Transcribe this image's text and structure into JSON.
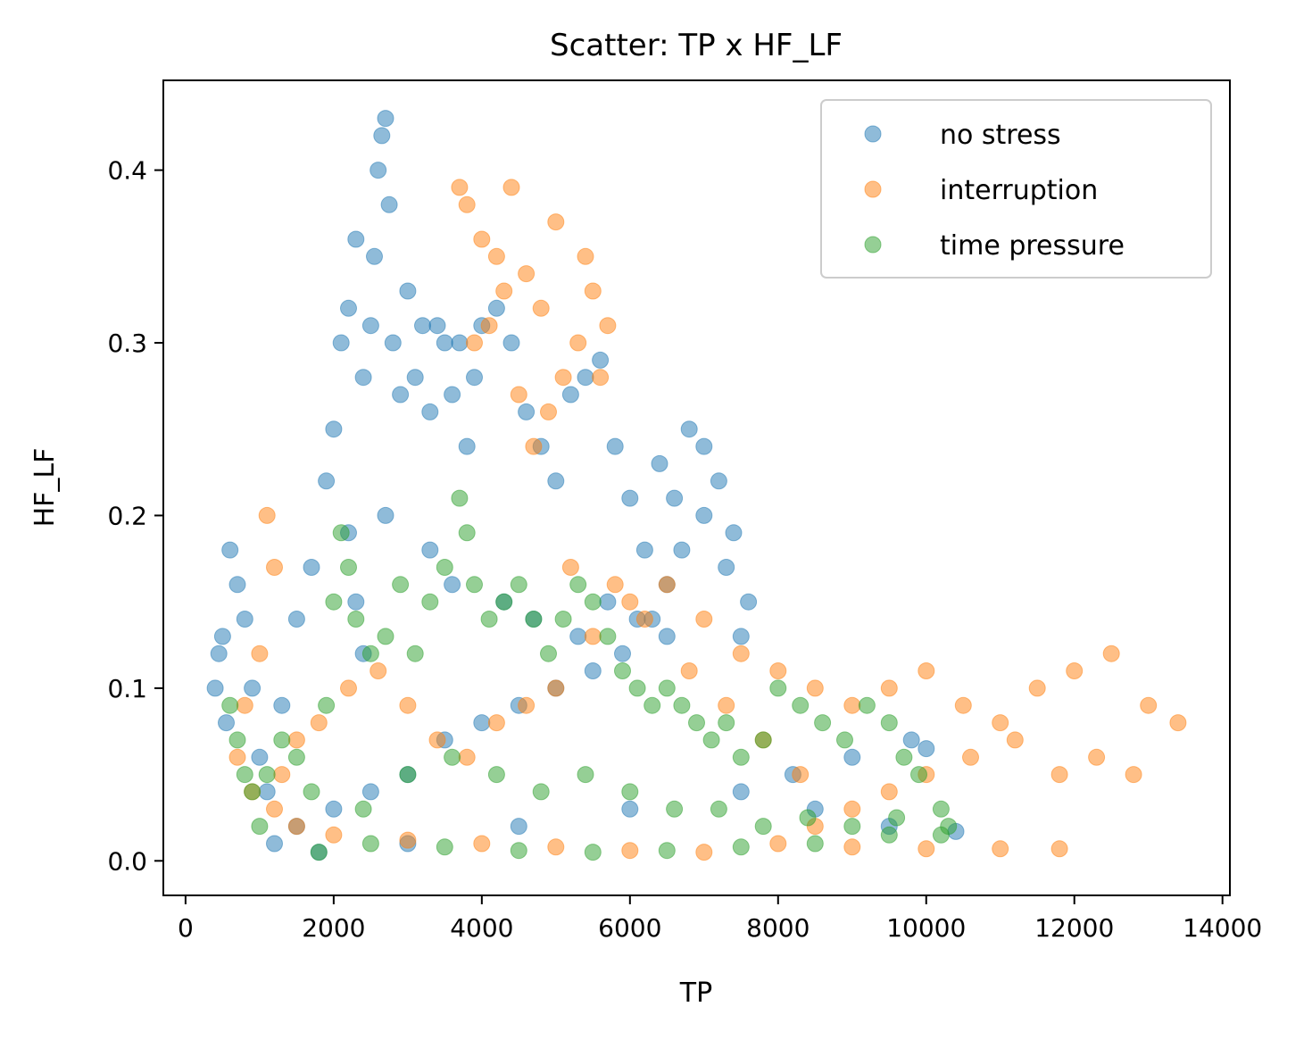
{
  "chart_data": {
    "type": "scatter",
    "title": "Scatter: TP x HF_LF",
    "xlabel": "TP",
    "ylabel": "HF_LF",
    "xlim": [
      -300,
      14100
    ],
    "ylim": [
      -0.02,
      0.452
    ],
    "xticks": [
      0,
      2000,
      4000,
      6000,
      8000,
      10000,
      12000,
      14000
    ],
    "xtick_labels": [
      "0",
      "2000",
      "4000",
      "6000",
      "8000",
      "10000",
      "12000",
      "14000"
    ],
    "yticks": [
      0.0,
      0.1,
      0.2,
      0.3,
      0.4
    ],
    "ytick_labels": [
      "0.0",
      "0.1",
      "0.2",
      "0.3",
      "0.4"
    ],
    "grid": false,
    "legend_position": "upper right",
    "marker_alpha": 0.5,
    "series": [
      {
        "name": "no stress",
        "color": "#1f77b4",
        "points": [
          [
            400,
            0.1
          ],
          [
            500,
            0.13
          ],
          [
            600,
            0.18
          ],
          [
            700,
            0.16
          ],
          [
            550,
            0.08
          ],
          [
            450,
            0.12
          ],
          [
            800,
            0.14
          ],
          [
            900,
            0.1
          ],
          [
            1000,
            0.06
          ],
          [
            1100,
            0.04
          ],
          [
            1300,
            0.09
          ],
          [
            1500,
            0.14
          ],
          [
            1700,
            0.17
          ],
          [
            1900,
            0.22
          ],
          [
            2000,
            0.25
          ],
          [
            2100,
            0.3
          ],
          [
            2200,
            0.32
          ],
          [
            2300,
            0.36
          ],
          [
            2400,
            0.28
          ],
          [
            2500,
            0.31
          ],
          [
            2550,
            0.35
          ],
          [
            2600,
            0.4
          ],
          [
            2650,
            0.42
          ],
          [
            2700,
            0.43
          ],
          [
            2750,
            0.38
          ],
          [
            2800,
            0.3
          ],
          [
            2900,
            0.27
          ],
          [
            3000,
            0.33
          ],
          [
            3100,
            0.28
          ],
          [
            3200,
            0.31
          ],
          [
            3300,
            0.26
          ],
          [
            3400,
            0.31
          ],
          [
            3500,
            0.3
          ],
          [
            3600,
            0.27
          ],
          [
            3700,
            0.3
          ],
          [
            3800,
            0.24
          ],
          [
            3900,
            0.28
          ],
          [
            4000,
            0.31
          ],
          [
            4200,
            0.32
          ],
          [
            4400,
            0.3
          ],
          [
            4600,
            0.26
          ],
          [
            4800,
            0.24
          ],
          [
            5000,
            0.22
          ],
          [
            5200,
            0.27
          ],
          [
            5400,
            0.28
          ],
          [
            5600,
            0.29
          ],
          [
            5800,
            0.24
          ],
          [
            6000,
            0.21
          ],
          [
            6200,
            0.18
          ],
          [
            6400,
            0.23
          ],
          [
            6600,
            0.21
          ],
          [
            6800,
            0.25
          ],
          [
            7000,
            0.24
          ],
          [
            7200,
            0.22
          ],
          [
            7400,
            0.19
          ],
          [
            7600,
            0.15
          ],
          [
            7500,
            0.13
          ],
          [
            7300,
            0.17
          ],
          [
            7000,
            0.2
          ],
          [
            6700,
            0.18
          ],
          [
            6500,
            0.16
          ],
          [
            6300,
            0.14
          ],
          [
            5900,
            0.12
          ],
          [
            5500,
            0.11
          ],
          [
            5000,
            0.1
          ],
          [
            4500,
            0.09
          ],
          [
            4000,
            0.08
          ],
          [
            3500,
            0.07
          ],
          [
            3000,
            0.05
          ],
          [
            2500,
            0.04
          ],
          [
            2000,
            0.03
          ],
          [
            1500,
            0.02
          ],
          [
            1200,
            0.01
          ],
          [
            1800,
            0.005
          ],
          [
            3000,
            0.01
          ],
          [
            4500,
            0.02
          ],
          [
            6000,
            0.03
          ],
          [
            7500,
            0.04
          ],
          [
            8500,
            0.03
          ],
          [
            9500,
            0.02
          ],
          [
            10400,
            0.017
          ],
          [
            9800,
            0.07
          ],
          [
            10000,
            0.065
          ],
          [
            9000,
            0.06
          ],
          [
            8200,
            0.05
          ],
          [
            2200,
            0.19
          ],
          [
            2300,
            0.15
          ],
          [
            2400,
            0.12
          ],
          [
            2700,
            0.2
          ],
          [
            3300,
            0.18
          ],
          [
            3600,
            0.16
          ],
          [
            4300,
            0.15
          ],
          [
            4700,
            0.14
          ],
          [
            5300,
            0.13
          ],
          [
            5700,
            0.15
          ],
          [
            6100,
            0.14
          ],
          [
            6500,
            0.13
          ]
        ]
      },
      {
        "name": "interruption",
        "color": "#ff7f0e",
        "points": [
          [
            3700,
            0.39
          ],
          [
            3800,
            0.38
          ],
          [
            4000,
            0.36
          ],
          [
            4200,
            0.35
          ],
          [
            4400,
            0.39
          ],
          [
            4300,
            0.33
          ],
          [
            4100,
            0.31
          ],
          [
            3900,
            0.3
          ],
          [
            4500,
            0.27
          ],
          [
            4700,
            0.24
          ],
          [
            4900,
            0.26
          ],
          [
            5100,
            0.28
          ],
          [
            5300,
            0.3
          ],
          [
            5500,
            0.33
          ],
          [
            5700,
            0.31
          ],
          [
            5600,
            0.28
          ],
          [
            5400,
            0.35
          ],
          [
            5000,
            0.37
          ],
          [
            4600,
            0.34
          ],
          [
            4800,
            0.32
          ],
          [
            1100,
            0.2
          ],
          [
            1200,
            0.17
          ],
          [
            1000,
            0.12
          ],
          [
            800,
            0.09
          ],
          [
            700,
            0.06
          ],
          [
            900,
            0.04
          ],
          [
            1300,
            0.05
          ],
          [
            1500,
            0.07
          ],
          [
            1800,
            0.08
          ],
          [
            2200,
            0.1
          ],
          [
            2600,
            0.11
          ],
          [
            3000,
            0.09
          ],
          [
            3400,
            0.07
          ],
          [
            3800,
            0.06
          ],
          [
            4200,
            0.08
          ],
          [
            4600,
            0.09
          ],
          [
            5000,
            0.1
          ],
          [
            5500,
            0.13
          ],
          [
            6000,
            0.15
          ],
          [
            6500,
            0.16
          ],
          [
            7000,
            0.14
          ],
          [
            7500,
            0.12
          ],
          [
            8000,
            0.11
          ],
          [
            8500,
            0.1
          ],
          [
            9000,
            0.09
          ],
          [
            9500,
            0.1
          ],
          [
            10000,
            0.11
          ],
          [
            10500,
            0.09
          ],
          [
            11000,
            0.08
          ],
          [
            11500,
            0.1
          ],
          [
            12000,
            0.11
          ],
          [
            12500,
            0.12
          ],
          [
            13000,
            0.09
          ],
          [
            13400,
            0.08
          ],
          [
            12800,
            0.05
          ],
          [
            12300,
            0.06
          ],
          [
            11800,
            0.05
          ],
          [
            11200,
            0.07
          ],
          [
            10600,
            0.06
          ],
          [
            10000,
            0.05
          ],
          [
            9500,
            0.04
          ],
          [
            9000,
            0.03
          ],
          [
            8500,
            0.02
          ],
          [
            8000,
            0.01
          ],
          [
            9000,
            0.008
          ],
          [
            10000,
            0.007
          ],
          [
            11000,
            0.007
          ],
          [
            11800,
            0.007
          ],
          [
            7000,
            0.005
          ],
          [
            6000,
            0.006
          ],
          [
            5000,
            0.008
          ],
          [
            4000,
            0.01
          ],
          [
            3000,
            0.012
          ],
          [
            2000,
            0.015
          ],
          [
            1500,
            0.02
          ],
          [
            1200,
            0.03
          ],
          [
            5200,
            0.17
          ],
          [
            5800,
            0.16
          ],
          [
            6200,
            0.14
          ],
          [
            6800,
            0.11
          ],
          [
            7300,
            0.09
          ],
          [
            7800,
            0.07
          ],
          [
            8300,
            0.05
          ]
        ]
      },
      {
        "name": "time pressure",
        "color": "#2ca02c",
        "points": [
          [
            600,
            0.09
          ],
          [
            700,
            0.07
          ],
          [
            800,
            0.05
          ],
          [
            900,
            0.04
          ],
          [
            1000,
            0.02
          ],
          [
            1100,
            0.05
          ],
          [
            1300,
            0.07
          ],
          [
            1500,
            0.06
          ],
          [
            1700,
            0.04
          ],
          [
            1900,
            0.09
          ],
          [
            2000,
            0.15
          ],
          [
            2100,
            0.19
          ],
          [
            2200,
            0.17
          ],
          [
            2300,
            0.14
          ],
          [
            2500,
            0.12
          ],
          [
            2700,
            0.13
          ],
          [
            2900,
            0.16
          ],
          [
            3100,
            0.12
          ],
          [
            3300,
            0.15
          ],
          [
            3500,
            0.17
          ],
          [
            3700,
            0.21
          ],
          [
            3800,
            0.19
          ],
          [
            3900,
            0.16
          ],
          [
            4100,
            0.14
          ],
          [
            4300,
            0.15
          ],
          [
            4500,
            0.16
          ],
          [
            4700,
            0.14
          ],
          [
            4900,
            0.12
          ],
          [
            5100,
            0.14
          ],
          [
            5300,
            0.16
          ],
          [
            5500,
            0.15
          ],
          [
            5700,
            0.13
          ],
          [
            5900,
            0.11
          ],
          [
            6100,
            0.1
          ],
          [
            6300,
            0.09
          ],
          [
            6500,
            0.1
          ],
          [
            6700,
            0.09
          ],
          [
            6900,
            0.08
          ],
          [
            7100,
            0.07
          ],
          [
            7300,
            0.08
          ],
          [
            7500,
            0.06
          ],
          [
            7800,
            0.07
          ],
          [
            8000,
            0.1
          ],
          [
            8300,
            0.09
          ],
          [
            8600,
            0.08
          ],
          [
            8900,
            0.07
          ],
          [
            9200,
            0.09
          ],
          [
            9500,
            0.08
          ],
          [
            9700,
            0.06
          ],
          [
            9900,
            0.05
          ],
          [
            10200,
            0.03
          ],
          [
            10300,
            0.02
          ],
          [
            9500,
            0.015
          ],
          [
            8500,
            0.01
          ],
          [
            7500,
            0.008
          ],
          [
            6500,
            0.006
          ],
          [
            5500,
            0.005
          ],
          [
            4500,
            0.006
          ],
          [
            3500,
            0.008
          ],
          [
            2500,
            0.01
          ],
          [
            1800,
            0.005
          ],
          [
            2400,
            0.03
          ],
          [
            3000,
            0.05
          ],
          [
            3600,
            0.06
          ],
          [
            4200,
            0.05
          ],
          [
            4800,
            0.04
          ],
          [
            5400,
            0.05
          ],
          [
            6000,
            0.04
          ],
          [
            6600,
            0.03
          ],
          [
            7200,
            0.03
          ],
          [
            7800,
            0.02
          ],
          [
            8400,
            0.025
          ],
          [
            9000,
            0.02
          ],
          [
            9600,
            0.025
          ],
          [
            10200,
            0.015
          ]
        ]
      }
    ]
  }
}
